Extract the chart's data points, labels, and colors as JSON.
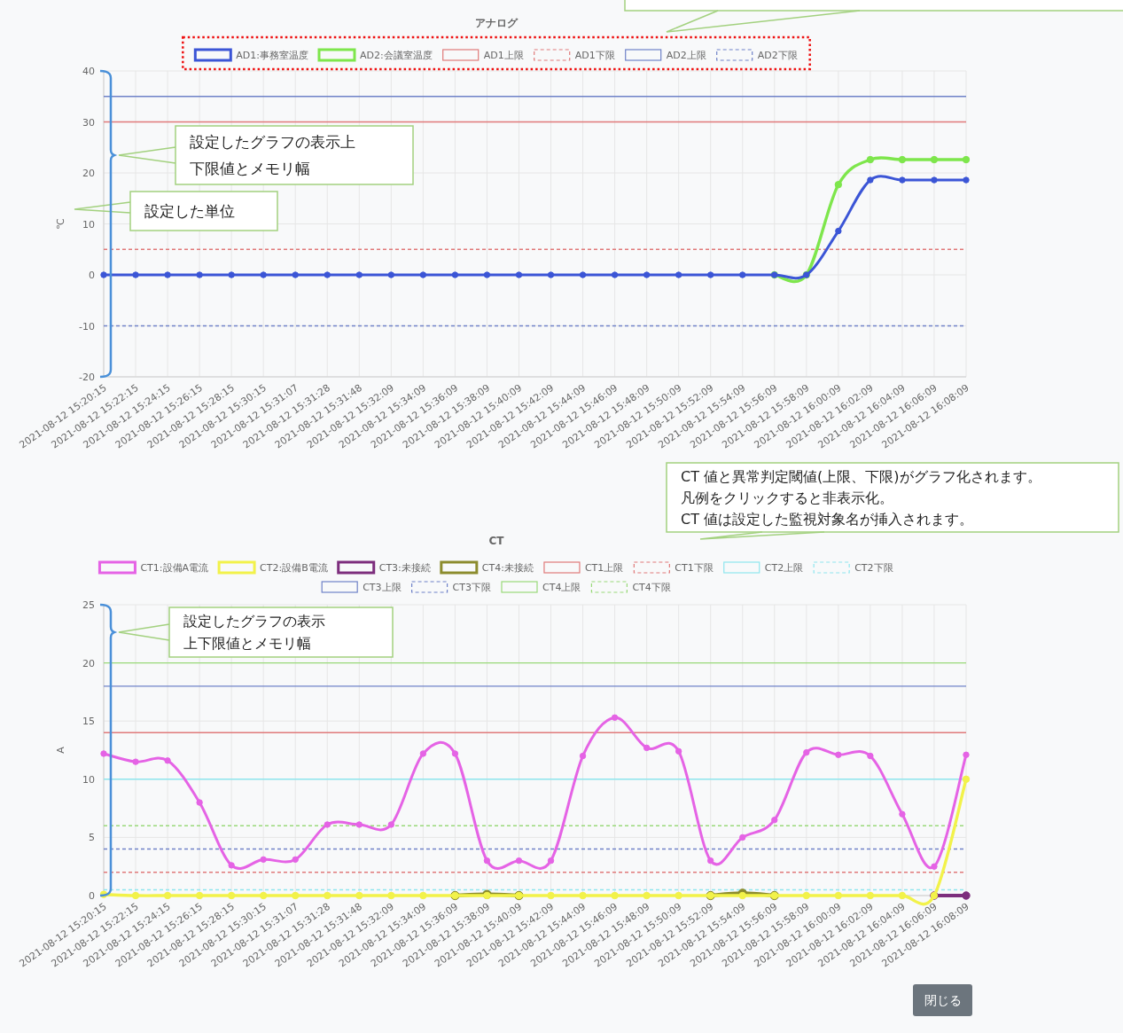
{
  "chart_data": [
    {
      "type": "line",
      "title": "アナログ",
      "ylabel": "℃",
      "categories": [
        "2021-08-12 15:20:15",
        "2021-08-12 15:22:15",
        "2021-08-12 15:24:15",
        "2021-08-12 15:26:15",
        "2021-08-12 15:28:15",
        "2021-08-12 15:30:15",
        "2021-08-12 15:31:07",
        "2021-08-12 15:31:28",
        "2021-08-12 15:31:48",
        "2021-08-12 15:32:09",
        "2021-08-12 15:34:09",
        "2021-08-12 15:36:09",
        "2021-08-12 15:38:09",
        "2021-08-12 15:40:09",
        "2021-08-12 15:42:09",
        "2021-08-12 15:44:09",
        "2021-08-12 15:46:09",
        "2021-08-12 15:48:09",
        "2021-08-12 15:50:09",
        "2021-08-12 15:52:09",
        "2021-08-12 15:54:09",
        "2021-08-12 15:56:09",
        "2021-08-12 15:58:09",
        "2021-08-12 16:00:09",
        "2021-08-12 16:02:09",
        "2021-08-12 16:04:09",
        "2021-08-12 16:06:09",
        "2021-08-12 16:08:09"
      ],
      "series": [
        {
          "name": "AD1:事務室温度",
          "color": "#3b55d6",
          "values": [
            0,
            0,
            0,
            0,
            0,
            0,
            0,
            0,
            0,
            0,
            0,
            0,
            0,
            0,
            0,
            0,
            0,
            0,
            0,
            0,
            0,
            0,
            0,
            8.6,
            18.6,
            18.6,
            18.6,
            18.6
          ]
        },
        {
          "name": "AD2:会議室温度",
          "color": "#7ee64c",
          "values": [
            null,
            null,
            null,
            null,
            null,
            null,
            null,
            null,
            null,
            null,
            null,
            null,
            null,
            null,
            null,
            null,
            null,
            null,
            null,
            null,
            null,
            0,
            0,
            17.7,
            22.6,
            22.6,
            22.6,
            22.6
          ]
        }
      ],
      "ref_lines": [
        {
          "axis": "y",
          "value": 30,
          "label": "AD1上限",
          "color": "#e07a7a",
          "line_style": "solid"
        },
        {
          "axis": "y",
          "value": 5,
          "label": "AD1下限",
          "color": "#e07a7a",
          "line_style": "dashed"
        },
        {
          "axis": "y",
          "value": 35,
          "label": "AD2上限",
          "color": "#6f82c8",
          "line_style": "solid"
        },
        {
          "axis": "y",
          "value": -10,
          "label": "AD2下限",
          "color": "#6f82c8",
          "line_style": "dashed"
        }
      ],
      "ylim": [
        -20,
        40
      ],
      "yticks": [
        -20,
        -10,
        0,
        10,
        20,
        30,
        40
      ],
      "grid": true,
      "legend": "top",
      "marker": "circle",
      "annotations": [
        "設定したグラフの表示上下限値とメモリ幅",
        "設定した単位"
      ]
    },
    {
      "type": "line",
      "title": "CT",
      "ylabel": "A",
      "categories": [
        "2021-08-12 15:20:15",
        "2021-08-12 15:22:15",
        "2021-08-12 15:24:15",
        "2021-08-12 15:26:15",
        "2021-08-12 15:28:15",
        "2021-08-12 15:30:15",
        "2021-08-12 15:31:07",
        "2021-08-12 15:31:28",
        "2021-08-12 15:31:48",
        "2021-08-12 15:32:09",
        "2021-08-12 15:34:09",
        "2021-08-12 15:36:09",
        "2021-08-12 15:38:09",
        "2021-08-12 15:40:09",
        "2021-08-12 15:42:09",
        "2021-08-12 15:44:09",
        "2021-08-12 15:46:09",
        "2021-08-12 15:48:09",
        "2021-08-12 15:50:09",
        "2021-08-12 15:52:09",
        "2021-08-12 15:54:09",
        "2021-08-12 15:56:09",
        "2021-08-12 15:58:09",
        "2021-08-12 16:00:09",
        "2021-08-12 16:02:09",
        "2021-08-12 16:04:09",
        "2021-08-12 16:06:09",
        "2021-08-12 16:08:09"
      ],
      "series": [
        {
          "name": "CT1:設備A電流",
          "color": "#e563e5",
          "values": [
            12.2,
            11.5,
            11.6,
            8.0,
            2.6,
            3.1,
            3.1,
            6.1,
            6.1,
            6.1,
            12.2,
            12.2,
            3.0,
            3.0,
            3.0,
            12.0,
            15.3,
            12.7,
            12.4,
            3.0,
            5.0,
            6.5,
            12.3,
            12.1,
            12.0,
            7.0,
            2.5,
            12.1
          ]
        },
        {
          "name": "CT2:設備B電流",
          "color": "#f2f24a",
          "values": [
            0.1,
            0,
            0,
            0,
            0,
            0,
            0,
            0,
            0,
            0,
            0,
            0,
            0,
            0,
            0,
            0,
            0,
            0,
            0,
            0,
            0,
            0,
            0,
            0,
            0,
            0,
            0,
            10.0
          ]
        },
        {
          "name": "CT3:未接続",
          "color": "#7d2e7d",
          "values": [
            null,
            null,
            null,
            null,
            null,
            null,
            null,
            null,
            null,
            null,
            null,
            null,
            null,
            null,
            null,
            null,
            null,
            null,
            null,
            null,
            null,
            null,
            null,
            null,
            null,
            null,
            0,
            0
          ]
        },
        {
          "name": "CT4:未接続",
          "color": "#8c8c2e",
          "values": [
            null,
            null,
            null,
            null,
            null,
            null,
            null,
            null,
            null,
            null,
            null,
            0,
            0.1,
            0,
            null,
            null,
            null,
            null,
            null,
            0,
            0.2,
            0,
            null,
            null,
            null,
            null,
            null,
            null
          ]
        }
      ],
      "ref_lines": [
        {
          "axis": "y",
          "value": 14,
          "label": "CT1上限",
          "color": "#e07a7a",
          "line_style": "solid"
        },
        {
          "axis": "y",
          "value": 2,
          "label": "CT1下限",
          "color": "#e07a7a",
          "line_style": "dashed"
        },
        {
          "axis": "y",
          "value": 10,
          "label": "CT2上限",
          "color": "#8fe6ee",
          "line_style": "solid"
        },
        {
          "axis": "y",
          "value": 0.5,
          "label": "CT2下限",
          "color": "#8fe6ee",
          "line_style": "dashed"
        },
        {
          "axis": "y",
          "value": 18,
          "label": "CT3上限",
          "color": "#6f82c8",
          "line_style": "solid"
        },
        {
          "axis": "y",
          "value": 4,
          "label": "CT3下限",
          "color": "#6f82c8",
          "line_style": "dashed"
        },
        {
          "axis": "y",
          "value": 20,
          "label": "CT4上限",
          "color": "#9ad97a",
          "line_style": "solid"
        },
        {
          "axis": "y",
          "value": 6,
          "label": "CT4下限",
          "color": "#9ad97a",
          "line_style": "dashed"
        }
      ],
      "ylim": [
        0,
        25
      ],
      "yticks": [
        0,
        5,
        10,
        15,
        20,
        25
      ],
      "grid": true,
      "legend": "top",
      "marker": "circle",
      "annotations": [
        "CT 値と異常判定閾値(上限、下限)がグラフ化されます。凡例をクリックすると非表示化。",
        "CT 値は設定した監視対象名が挿入されます。",
        "設定したグラフの表示上下限値とメモリ幅",
        "閉じる"
      ]
    }
  ]
}
